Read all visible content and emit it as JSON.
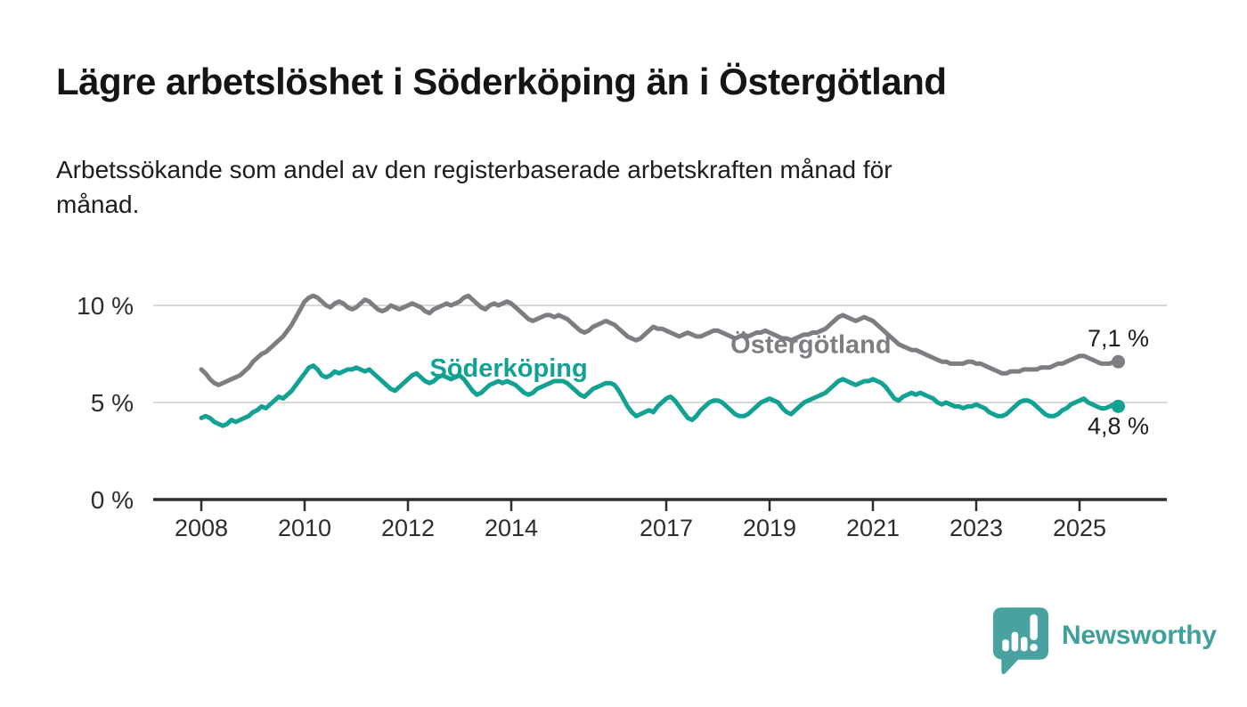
{
  "header": {
    "title": "Lägre arbetslöshet i Söderköping än i Östergötland",
    "subtitle": "Arbetssökande som andel av den registerbaserade arbetskraften månad för månad.",
    "subtitle_lines": [
      "Arbetssökande som andel av den registerbaserade arbetskraften månad för",
      "månad."
    ]
  },
  "branding": {
    "logo_text": "Newsworthy",
    "logo_icon": "bar-chart-speech-bubble",
    "logo_color": "#48a3a0"
  },
  "chart_data": {
    "type": "line",
    "unit": "%",
    "x_interval": "monthly",
    "x_start_year": 2008,
    "x_end_label_year": 2025.75,
    "x_axis": {
      "ticks": [
        2008,
        2010,
        2012,
        2014,
        2017,
        2019,
        2021,
        2023,
        2025
      ]
    },
    "y_axis": {
      "labels": [
        {
          "value": 0,
          "text": "0 %"
        },
        {
          "value": 5,
          "text": "5 %"
        },
        {
          "value": 10,
          "text": "10 %"
        }
      ],
      "gridlines": [
        5,
        10
      ],
      "range": [
        0,
        11.6
      ]
    },
    "style": {
      "grid_color": "#d9d9d9",
      "axis_color": "#2d2d2d",
      "tick_text_color": "#2d2d2d",
      "end_label_color": "#1d1d1d",
      "line_width": 5
    },
    "series": [
      {
        "id": "soderkoping",
        "name": "Söderköping",
        "color": "#12a192",
        "end_label": "4,8 %",
        "end_value": 4.8,
        "label_pos": {
          "year": 2013.95,
          "value": 6.78
        },
        "end_label_dy": 31,
        "values": [
          4.2,
          4.3,
          4.2,
          4.0,
          3.9,
          3.8,
          3.9,
          4.1,
          4.0,
          4.1,
          4.2,
          4.3,
          4.5,
          4.6,
          4.8,
          4.7,
          4.9,
          5.1,
          5.3,
          5.2,
          5.4,
          5.6,
          5.9,
          6.2,
          6.5,
          6.8,
          6.9,
          6.7,
          6.4,
          6.3,
          6.4,
          6.6,
          6.5,
          6.6,
          6.7,
          6.7,
          6.8,
          6.7,
          6.6,
          6.7,
          6.5,
          6.3,
          6.1,
          5.9,
          5.7,
          5.6,
          5.8,
          6.0,
          6.2,
          6.4,
          6.5,
          6.3,
          6.1,
          6.0,
          6.1,
          6.3,
          6.4,
          6.3,
          6.2,
          6.3,
          6.4,
          6.2,
          5.9,
          5.6,
          5.4,
          5.5,
          5.7,
          5.9,
          6.0,
          6.1,
          6.0,
          6.1,
          6.0,
          5.9,
          5.7,
          5.5,
          5.4,
          5.5,
          5.7,
          5.8,
          5.9,
          6.0,
          6.1,
          6.1,
          6.1,
          6.0,
          5.8,
          5.6,
          5.4,
          5.3,
          5.5,
          5.7,
          5.8,
          5.9,
          6.0,
          6.0,
          5.9,
          5.6,
          5.2,
          4.8,
          4.5,
          4.3,
          4.4,
          4.5,
          4.6,
          4.5,
          4.8,
          5.0,
          5.2,
          5.3,
          5.1,
          4.8,
          4.5,
          4.2,
          4.1,
          4.3,
          4.6,
          4.8,
          5.0,
          5.1,
          5.1,
          5.0,
          4.8,
          4.6,
          4.4,
          4.3,
          4.3,
          4.4,
          4.6,
          4.8,
          5.0,
          5.1,
          5.2,
          5.1,
          5.0,
          4.7,
          4.5,
          4.4,
          4.6,
          4.8,
          5.0,
          5.1,
          5.2,
          5.3,
          5.4,
          5.5,
          5.7,
          5.9,
          6.1,
          6.2,
          6.1,
          6.0,
          5.9,
          6.0,
          6.1,
          6.1,
          6.2,
          6.1,
          6.0,
          5.8,
          5.5,
          5.2,
          5.1,
          5.3,
          5.4,
          5.5,
          5.4,
          5.5,
          5.4,
          5.3,
          5.2,
          5.0,
          4.9,
          5.0,
          4.9,
          4.8,
          4.8,
          4.7,
          4.8,
          4.8,
          4.9,
          4.8,
          4.7,
          4.5,
          4.4,
          4.3,
          4.3,
          4.4,
          4.6,
          4.8,
          5.0,
          5.1,
          5.1,
          5.0,
          4.8,
          4.6,
          4.4,
          4.3,
          4.3,
          4.4,
          4.6,
          4.7,
          4.9,
          5.0,
          5.1,
          5.2,
          5.0,
          4.9,
          4.8,
          4.7,
          4.7,
          4.8,
          4.9,
          4.8
        ]
      },
      {
        "id": "ostergotland",
        "name": "Östergötland",
        "color": "#7d7d82",
        "end_label": "7,1 %",
        "end_value": 7.1,
        "label_pos": {
          "year": 2019.8,
          "value": 8.0
        },
        "end_label_dy": -17,
        "values": [
          6.7,
          6.5,
          6.2,
          6.0,
          5.9,
          6.0,
          6.1,
          6.2,
          6.3,
          6.4,
          6.6,
          6.8,
          7.1,
          7.3,
          7.5,
          7.6,
          7.8,
          8.0,
          8.2,
          8.4,
          8.7,
          9.0,
          9.4,
          9.8,
          10.2,
          10.4,
          10.5,
          10.4,
          10.2,
          10.0,
          9.9,
          10.1,
          10.2,
          10.1,
          9.9,
          9.8,
          9.9,
          10.1,
          10.3,
          10.2,
          10.0,
          9.8,
          9.7,
          9.8,
          10.0,
          9.9,
          9.8,
          9.9,
          10.0,
          10.1,
          10.0,
          9.9,
          9.7,
          9.6,
          9.8,
          9.9,
          10.0,
          10.1,
          10.0,
          10.1,
          10.2,
          10.4,
          10.5,
          10.3,
          10.1,
          9.9,
          9.8,
          10.0,
          10.1,
          10.0,
          10.1,
          10.2,
          10.1,
          9.9,
          9.7,
          9.5,
          9.3,
          9.2,
          9.3,
          9.4,
          9.5,
          9.5,
          9.4,
          9.5,
          9.4,
          9.3,
          9.1,
          8.9,
          8.7,
          8.6,
          8.7,
          8.9,
          9.0,
          9.1,
          9.2,
          9.1,
          9.0,
          8.8,
          8.6,
          8.4,
          8.3,
          8.2,
          8.3,
          8.5,
          8.7,
          8.9,
          8.8,
          8.8,
          8.7,
          8.6,
          8.5,
          8.4,
          8.5,
          8.6,
          8.5,
          8.4,
          8.4,
          8.5,
          8.6,
          8.7,
          8.7,
          8.6,
          8.5,
          8.4,
          8.3,
          8.4,
          8.5,
          8.4,
          8.5,
          8.6,
          8.6,
          8.7,
          8.6,
          8.5,
          8.4,
          8.3,
          8.3,
          8.2,
          8.3,
          8.4,
          8.5,
          8.5,
          8.6,
          8.6,
          8.7,
          8.8,
          9.0,
          9.2,
          9.4,
          9.5,
          9.4,
          9.3,
          9.2,
          9.3,
          9.4,
          9.3,
          9.2,
          9.0,
          8.8,
          8.6,
          8.4,
          8.2,
          8.0,
          7.9,
          7.8,
          7.7,
          7.7,
          7.6,
          7.5,
          7.4,
          7.3,
          7.2,
          7.1,
          7.1,
          7.0,
          7.0,
          7.0,
          7.0,
          7.1,
          7.1,
          7.0,
          7.0,
          6.9,
          6.8,
          6.7,
          6.6,
          6.5,
          6.5,
          6.6,
          6.6,
          6.6,
          6.7,
          6.7,
          6.7,
          6.7,
          6.8,
          6.8,
          6.8,
          6.9,
          7.0,
          7.0,
          7.1,
          7.2,
          7.3,
          7.4,
          7.4,
          7.3,
          7.2,
          7.1,
          7.0,
          7.0,
          7.0,
          7.1,
          7.1
        ]
      }
    ]
  }
}
